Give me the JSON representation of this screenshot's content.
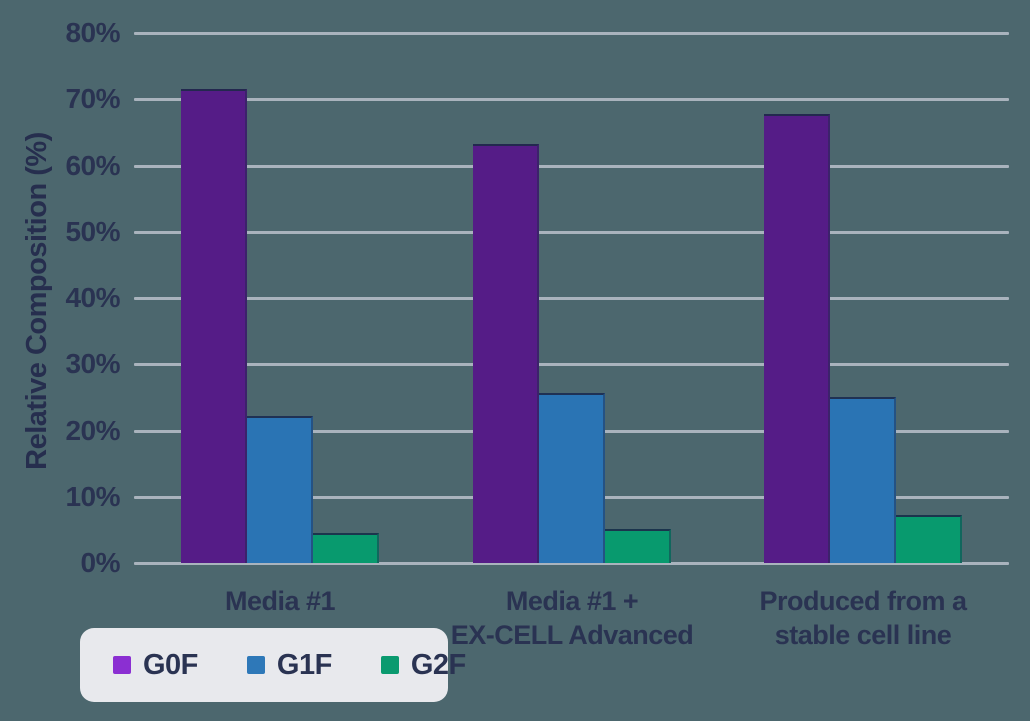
{
  "chart_data": {
    "type": "bar",
    "title": "",
    "xlabel": "",
    "ylabel": "Relative Composition (%)",
    "ylim": [
      0,
      80
    ],
    "ytick_values": [
      0,
      10,
      20,
      30,
      40,
      50,
      60,
      70,
      80
    ],
    "ytick_labels": [
      "0%",
      "10%",
      "20%",
      "30%",
      "40%",
      "50%",
      "60%",
      "70%",
      "80%"
    ],
    "grid": true,
    "legend_position": "bottom-left",
    "categories": [
      "Media #1",
      "Media #1 +\nEX-CELL Advanced",
      "Produced from a\nstable cell line"
    ],
    "series": [
      {
        "name": "G0F",
        "color": "#551C87",
        "legend_color": "#8B2FD2",
        "values": [
          71.5,
          63.2,
          67.7
        ]
      },
      {
        "name": "G1F",
        "color": "#2A74B4",
        "legend_color": "#2E78B8",
        "values": [
          22.2,
          25.7,
          25.1
        ]
      },
      {
        "name": "G2F",
        "color": "#089A6E",
        "legend_color": "#0A9A6F",
        "values": [
          4.5,
          5.2,
          7.2
        ]
      }
    ]
  },
  "legend": {
    "items": [
      {
        "label": "G0F"
      },
      {
        "label": "G1F"
      },
      {
        "label": "G2F"
      }
    ]
  },
  "colors": {
    "background": "#4C676E",
    "gridline": "#A9B3BD",
    "text": "#2A3352",
    "legend_bg": "#E8E9ED",
    "bar_edge": "#1E2A4A"
  }
}
